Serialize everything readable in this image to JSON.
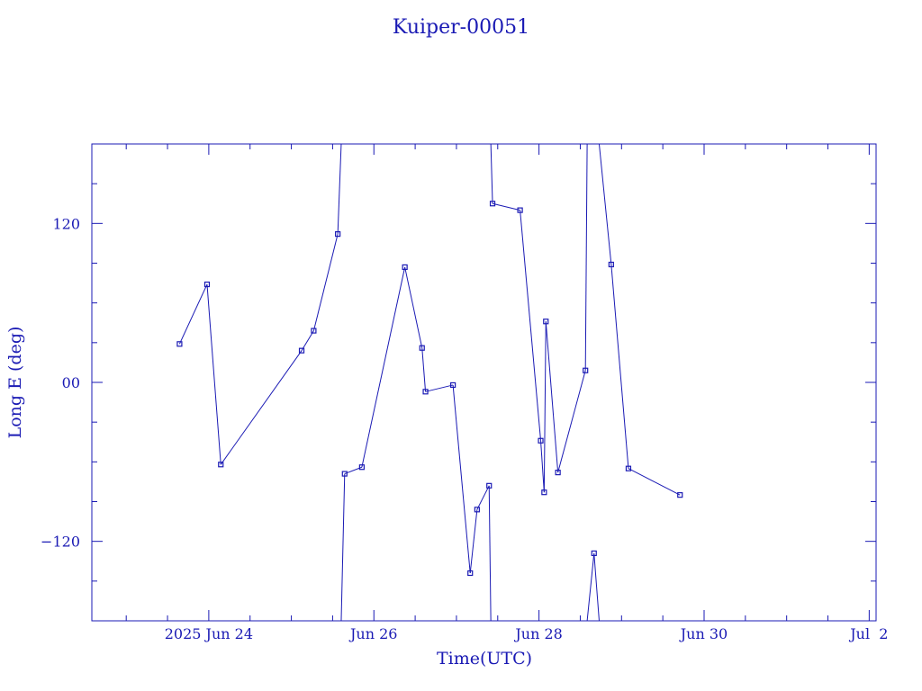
{
  "chart_data": {
    "type": "line",
    "title": "Kuiper-00051",
    "xlabel": "Time(UTC)",
    "ylabel": "Long E (deg)",
    "x_range": [
      "2025-06-22T14:00Z",
      "2025-07-02T02:00Z"
    ],
    "ylim": [
      -180,
      180
    ],
    "x_tick_labels": [
      {
        "date": "2025-06-24",
        "label": "2025 Jun 24"
      },
      {
        "date": "2025-06-26",
        "label": "Jun 26"
      },
      {
        "date": "2025-06-28",
        "label": "Jun 28"
      },
      {
        "date": "2025-06-30",
        "label": "Jun 30"
      },
      {
        "date": "2025-07-02",
        "label": "Jul  2"
      }
    ],
    "y_tick_labels": [
      {
        "value": 120,
        "label": "120"
      },
      {
        "value": 0,
        "label": "00"
      },
      {
        "value": -120,
        "label": "−120"
      }
    ],
    "series": [
      {
        "points": [
          [
            "2025-06-23T15:30Z",
            29
          ],
          [
            "2025-06-23T23:30Z",
            74
          ],
          [
            "2025-06-24T03:30Z",
            -62
          ],
          [
            "2025-06-25T03:00Z",
            24
          ],
          [
            "2025-06-25T06:30Z",
            39
          ],
          [
            "2025-06-25T13:30Z",
            112
          ],
          [
            "2025-06-25T14:30Z",
            180
          ],
          [
            "2025-06-25T14:30Z",
            -180
          ],
          [
            "2025-06-25T15:30Z",
            -69
          ],
          [
            "2025-06-25T20:30Z",
            -64
          ],
          [
            "2025-06-26T09:00Z",
            87
          ],
          [
            "2025-06-26T14:00Z",
            26
          ],
          [
            "2025-06-26T15:00Z",
            -7
          ],
          [
            "2025-06-26T23:00Z",
            -2
          ],
          [
            "2025-06-27T04:00Z",
            -144
          ],
          [
            "2025-06-27T06:00Z",
            -96
          ],
          [
            "2025-06-27T09:30Z",
            -78
          ],
          [
            "2025-06-27T10:00Z",
            -180
          ],
          [
            "2025-06-27T10:00Z",
            180
          ],
          [
            "2025-06-27T10:30Z",
            135
          ],
          [
            "2025-06-27T18:30Z",
            130
          ],
          [
            "2025-06-28T00:30Z",
            -44
          ],
          [
            "2025-06-28T01:30Z",
            -83
          ],
          [
            "2025-06-28T02:00Z",
            46
          ],
          [
            "2025-06-28T05:30Z",
            -68
          ],
          [
            "2025-06-28T13:30Z",
            9
          ],
          [
            "2025-06-28T14:00Z",
            180
          ],
          [
            "2025-06-28T14:00Z",
            -180
          ],
          [
            "2025-06-28T16:00Z",
            -129
          ],
          [
            "2025-06-28T17:30Z",
            -180
          ],
          [
            "2025-06-28T17:30Z",
            180
          ],
          [
            "2025-06-28T21:00Z",
            89
          ],
          [
            "2025-06-29T02:00Z",
            -65
          ],
          [
            "2025-06-29T17:00Z",
            -85
          ]
        ],
        "marked": [
          true,
          true,
          true,
          true,
          true,
          true,
          false,
          false,
          true,
          true,
          true,
          true,
          true,
          true,
          true,
          true,
          true,
          false,
          false,
          true,
          true,
          true,
          true,
          true,
          true,
          true,
          false,
          false,
          true,
          false,
          false,
          true,
          true,
          true
        ]
      }
    ],
    "grid": false,
    "legend": "none"
  },
  "colors": {
    "foreground": "#1a1ab4",
    "background": "#ffffff"
  }
}
